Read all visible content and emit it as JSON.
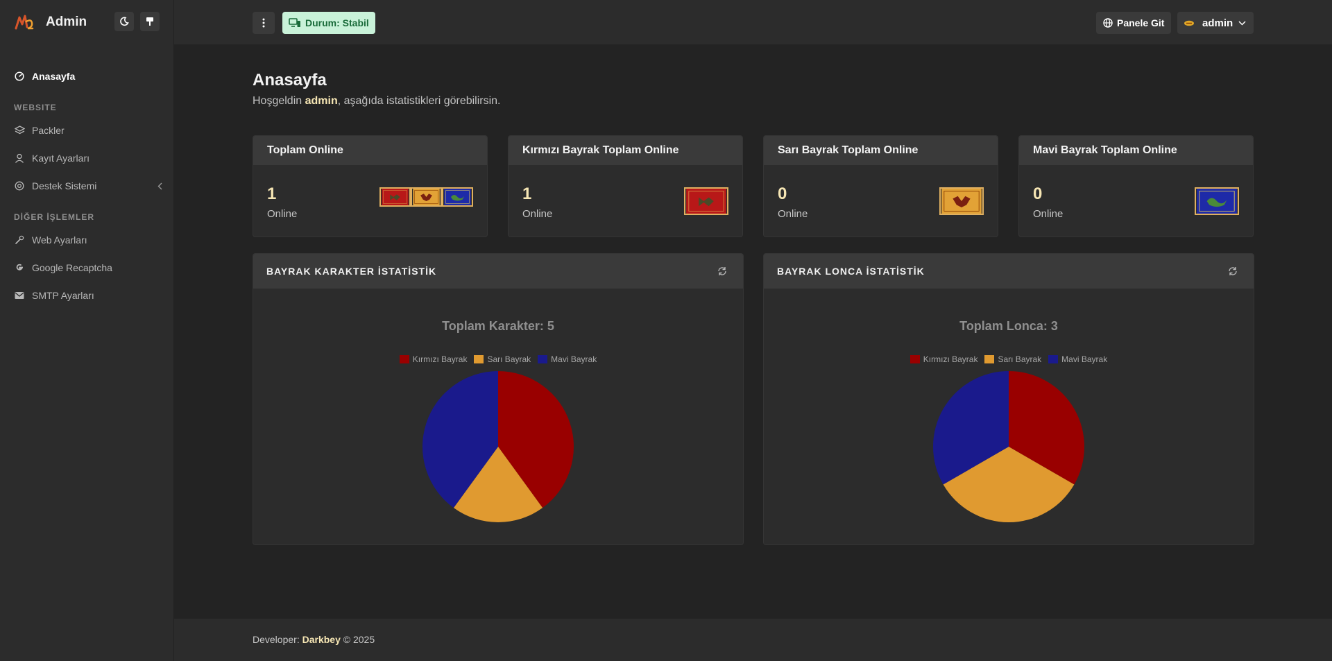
{
  "sidebar": {
    "brand": "Admin",
    "items": [
      {
        "label": "Anasayfa"
      },
      {
        "section": "WEBSITE"
      },
      {
        "label": "Packler"
      },
      {
        "label": "Kayıt Ayarları"
      },
      {
        "label": "Destek Sistemi"
      },
      {
        "section": "DİĞER İŞLEMLER"
      },
      {
        "label": "Web Ayarları"
      },
      {
        "label": "Google Recaptcha"
      },
      {
        "label": "SMTP Ayarları"
      }
    ]
  },
  "topbar": {
    "status": "Durum: Stabil",
    "panel_link": "Panele Git",
    "user": "admin"
  },
  "page": {
    "title": "Anasayfa",
    "greeting_prefix": "Hoşgeldin ",
    "greeting_user": "admin",
    "greeting_suffix": ", aşağıda istatistikleri görebilirsin."
  },
  "stats": [
    {
      "title": "Toplam Online",
      "value": "1",
      "label": "Online",
      "flags": [
        "red",
        "yellow",
        "blue"
      ]
    },
    {
      "title": "Kırmızı Bayrak Toplam Online",
      "value": "1",
      "label": "Online",
      "flags": [
        "red"
      ]
    },
    {
      "title": "Sarı Bayrak Toplam Online",
      "value": "0",
      "label": "Online",
      "flags": [
        "yellow"
      ]
    },
    {
      "title": "Mavi Bayrak Toplam Online",
      "value": "0",
      "label": "Online",
      "flags": [
        "blue"
      ]
    }
  ],
  "colors": {
    "red": "#990000",
    "yellow": "#e09a30",
    "blue": "#1a1a8c",
    "accent": "#f6e6b4",
    "status_bg": "#c9f2d9",
    "status_fg": "#1a6b3a"
  },
  "chart_data": [
    {
      "type": "pie",
      "header": "BAYRAK KARAKTER İSTATİSTİK",
      "title": "Toplam Karakter: 5",
      "categories": [
        "Kırmızı Bayrak",
        "Sarı Bayrak",
        "Mavi Bayrak"
      ],
      "values": [
        2,
        1,
        2
      ],
      "colors": [
        "#990000",
        "#e09a30",
        "#1a1a8c"
      ],
      "legend": "top"
    },
    {
      "type": "pie",
      "header": "BAYRAK LONCA İSTATİSTİK",
      "title": "Toplam Lonca: 3",
      "categories": [
        "Kırmızı Bayrak",
        "Sarı Bayrak",
        "Mavi Bayrak"
      ],
      "values": [
        1,
        1,
        1
      ],
      "colors": [
        "#990000",
        "#e09a30",
        "#1a1a8c"
      ],
      "legend": "top"
    }
  ],
  "footer": {
    "prefix": "Developer: ",
    "dev": "Darkbey",
    "suffix": " © 2025"
  }
}
